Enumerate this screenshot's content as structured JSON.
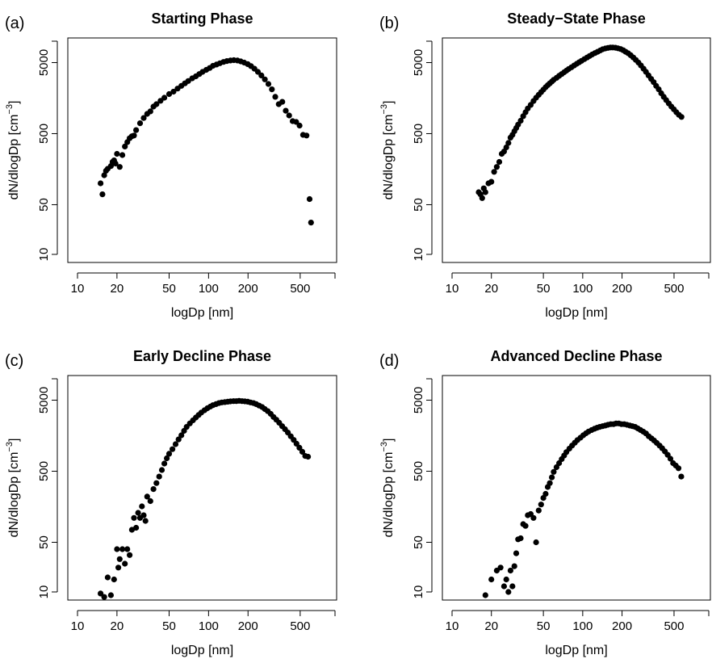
{
  "chart_data": [
    {
      "type": "scatter",
      "panel_label": "(a)",
      "title": "Starting Phase",
      "xlabel": "logDp [nm]",
      "ylabel": "dN/dlogDp [cm^-3]",
      "x_scale": "log",
      "y_scale": "log",
      "xlim": [
        10,
        800
      ],
      "ylim": [
        9,
        10000
      ],
      "x_ticks": [
        "10",
        "20",
        "50",
        "100",
        "200",
        "500"
      ],
      "y_ticks": [
        "10",
        "50",
        "500",
        "5000"
      ],
      "grid": false,
      "x": [
        15.0,
        15.5,
        16.0,
        16.5,
        17.0,
        18.0,
        18.5,
        19.0,
        19.5,
        20.0,
        21.0,
        22.0,
        23.0,
        24.0,
        25.0,
        26.0,
        27.0,
        28.0,
        30.0,
        32.0,
        34.0,
        36.0,
        38.0,
        40.0,
        43.0,
        46.0,
        50.0,
        54.0,
        58.0,
        62.0,
        66.0,
        70.0,
        75.0,
        80.0,
        85.0,
        90.0,
        96.0,
        102.0,
        108.0,
        115.0,
        122.0,
        130.0,
        138.0,
        147.0,
        156.0,
        166.0,
        176.0,
        187.0,
        199.0,
        211.0,
        224.0,
        238.0,
        253.0,
        269.0,
        286.0,
        304.0,
        323.0,
        343.0,
        365.0,
        388.0,
        412.0,
        438.0,
        466.0,
        495.0,
        526.0,
        559.0,
        590.0,
        605.0
      ],
      "y": [
        100,
        70,
        130,
        150,
        160,
        175,
        200,
        210,
        190,
        260,
        170,
        250,
        330,
        380,
        430,
        460,
        470,
        560,
        700,
        830,
        950,
        1030,
        1200,
        1300,
        1450,
        1600,
        1800,
        1950,
        2150,
        2350,
        2550,
        2750,
        3000,
        3200,
        3450,
        3700,
        3950,
        4200,
        4500,
        4700,
        4900,
        5100,
        5250,
        5350,
        5400,
        5350,
        5200,
        5000,
        4750,
        4450,
        4100,
        3700,
        3300,
        2900,
        2500,
        2100,
        1650,
        1300,
        1400,
        1050,
        900,
        750,
        730,
        650,
        480,
        470,
        60,
        28
      ]
    },
    {
      "type": "scatter",
      "panel_label": "(b)",
      "title": "Steady−State Phase",
      "xlabel": "logDp [nm]",
      "ylabel": "dN/dlogDp [cm^-3]",
      "x_scale": "log",
      "y_scale": "log",
      "xlim": [
        10,
        800
      ],
      "ylim": [
        9,
        10000
      ],
      "x_ticks": [
        "10",
        "20",
        "50",
        "100",
        "200",
        "500"
      ],
      "y_ticks": [
        "10",
        "50",
        "500",
        "5000"
      ],
      "grid": false,
      "x": [
        16.0,
        16.5,
        17.0,
        17.5,
        18.0,
        19.0,
        20.0,
        21.0,
        22.0,
        23.0,
        24.0,
        25.0,
        26.0,
        27.0,
        28.0,
        29.0,
        30.0,
        31.0,
        32.0,
        33.5,
        35.0,
        36.5,
        38.0,
        40.0,
        42.0,
        44.0,
        46.0,
        48.0,
        50.0,
        52.0,
        54.0,
        56.0,
        58.0,
        60.0,
        63.0,
        66.0,
        69.0,
        72.0,
        75.0,
        78.0,
        82.0,
        86.0,
        90.0,
        94.0,
        98.0,
        103.0,
        108.0,
        113.0,
        118.0,
        124.0,
        130.0,
        136.0,
        142.0,
        149.0,
        156.0,
        163.0,
        170.0,
        178.0,
        186.0,
        195.0,
        204.0,
        213.0,
        223.0,
        233.0,
        244.0,
        255.0,
        267.0,
        279.0,
        292.0,
        305.0,
        319.0,
        334.0,
        349.0,
        365.0,
        382.0,
        399.0,
        417.0,
        436.0,
        456.0,
        477.0,
        498.0,
        521.0,
        545.0,
        570.0
      ],
      "y": [
        75,
        70,
        62,
        85,
        75,
        100,
        105,
        145,
        170,
        200,
        260,
        280,
        320,
        370,
        440,
        480,
        540,
        600,
        670,
        760,
        880,
        1000,
        1130,
        1270,
        1440,
        1600,
        1760,
        1920,
        2080,
        2250,
        2400,
        2550,
        2700,
        2860,
        3050,
        3250,
        3450,
        3650,
        3850,
        4050,
        4300,
        4550,
        4800,
        5050,
        5300,
        5600,
        5900,
        6200,
        6500,
        6800,
        7100,
        7400,
        7700,
        7900,
        8050,
        8150,
        8150,
        8100,
        7950,
        7750,
        7450,
        7100,
        6750,
        6350,
        5900,
        5450,
        5000,
        4550,
        4100,
        3700,
        3300,
        2950,
        2650,
        2350,
        2100,
        1850,
        1650,
        1480,
        1330,
        1200,
        1100,
        1000,
        920,
        860
      ]
    },
    {
      "type": "scatter",
      "panel_label": "(c)",
      "title": "Early Decline Phase",
      "xlabel": "logDp [nm]",
      "ylabel": "dN/dlogDp [cm^-3]",
      "x_scale": "log",
      "y_scale": "log",
      "xlim": [
        10,
        800
      ],
      "ylim": [
        9,
        10000
      ],
      "x_ticks": [
        "10",
        "20",
        "50",
        "100",
        "200",
        "500"
      ],
      "y_ticks": [
        "10",
        "50",
        "500",
        "5000"
      ],
      "grid": false,
      "x": [
        15.0,
        16.0,
        17.0,
        18.0,
        19.0,
        20.0,
        20.5,
        21.0,
        22.0,
        23.0,
        24.0,
        25.0,
        26.0,
        27.0,
        28.0,
        29.0,
        30.0,
        31.0,
        32.0,
        33.0,
        34.0,
        36.0,
        38.0,
        40.0,
        42.0,
        44.0,
        46.0,
        48.0,
        50.0,
        53.0,
        56.0,
        59.0,
        62.0,
        65.0,
        68.0,
        72.0,
        76.0,
        80.0,
        84.0,
        88.0,
        93.0,
        98.0,
        103.0,
        108.0,
        114.0,
        120.0,
        126.0,
        133.0,
        140.0,
        147.0,
        155.0,
        163.0,
        171.0,
        180.0,
        189.0,
        199.0,
        209.0,
        220.0,
        231.0,
        243.0,
        256.0,
        269.0,
        283.0,
        298.0,
        313.0,
        329.0,
        346.0,
        364.0,
        383.0,
        403.0,
        424.0,
        446.0,
        469.0,
        493.0,
        519.0,
        546.0,
        574.0
      ],
      "y": [
        9.5,
        8.5,
        16,
        9.0,
        15,
        40,
        22,
        29,
        40,
        25,
        40,
        33,
        75,
        110,
        80,
        130,
        110,
        160,
        120,
        100,
        220,
        190,
        280,
        340,
        420,
        520,
        640,
        760,
        880,
        1020,
        1200,
        1400,
        1600,
        1850,
        2100,
        2350,
        2600,
        2850,
        3100,
        3350,
        3600,
        3850,
        4050,
        4250,
        4400,
        4550,
        4650,
        4700,
        4750,
        4800,
        4850,
        4850,
        4900,
        4850,
        4800,
        4750,
        4650,
        4550,
        4400,
        4200,
        4000,
        3750,
        3500,
        3200,
        2900,
        2650,
        2400,
        2150,
        1950,
        1750,
        1550,
        1380,
        1220,
        1070,
        940,
        820,
        800
      ]
    },
    {
      "type": "scatter",
      "panel_label": "(d)",
      "title": "Advanced Decline Phase",
      "xlabel": "logDp [nm]",
      "ylabel": "dN/dlogDp [cm^-3]",
      "x_scale": "log",
      "y_scale": "log",
      "xlim": [
        10,
        800
      ],
      "ylim": [
        9,
        10000
      ],
      "x_ticks": [
        "10",
        "20",
        "50",
        "100",
        "200",
        "500"
      ],
      "y_ticks": [
        "10",
        "50",
        "500",
        "5000"
      ],
      "grid": false,
      "x": [
        18.0,
        20.0,
        22.0,
        23.5,
        25.0,
        26.0,
        27.0,
        28.0,
        29.0,
        30.0,
        31.0,
        32.0,
        33.5,
        35.0,
        36.5,
        38.0,
        40.0,
        42.0,
        44.0,
        46.0,
        48.0,
        50.0,
        52.0,
        54.0,
        56.0,
        58.0,
        60.0,
        63.0,
        66.0,
        69.0,
        72.0,
        75.0,
        79.0,
        83.0,
        87.0,
        91.0,
        96.0,
        101.0,
        106.0,
        111.0,
        117.0,
        123.0,
        129.0,
        135.0,
        142.0,
        149.0,
        156.0,
        164.0,
        172.0,
        180.0,
        189.0,
        198.0,
        208.0,
        218.0,
        229.0,
        240.0,
        252.0,
        264.0,
        277.0,
        291.0,
        305.0,
        320.0,
        336.0,
        352.0,
        369.0,
        387.0,
        406.0,
        426.0,
        447.0,
        469.0,
        492.0,
        516.0,
        541.0,
        568.0
      ],
      "y": [
        9.0,
        15,
        20,
        22,
        12,
        15,
        10,
        20,
        12,
        23,
        35,
        55,
        57,
        90,
        85,
        120,
        125,
        110,
        50,
        140,
        170,
        210,
        240,
        300,
        340,
        410,
        490,
        570,
        650,
        740,
        830,
        930,
        1040,
        1150,
        1260,
        1370,
        1480,
        1600,
        1710,
        1810,
        1900,
        1980,
        2050,
        2100,
        2150,
        2200,
        2250,
        2300,
        2300,
        2350,
        2350,
        2300,
        2300,
        2250,
        2200,
        2150,
        2100,
        2000,
        1900,
        1800,
        1700,
        1550,
        1450,
        1350,
        1250,
        1150,
        1050,
        950,
        850,
        750,
        650,
        600,
        550,
        420
      ]
    }
  ]
}
